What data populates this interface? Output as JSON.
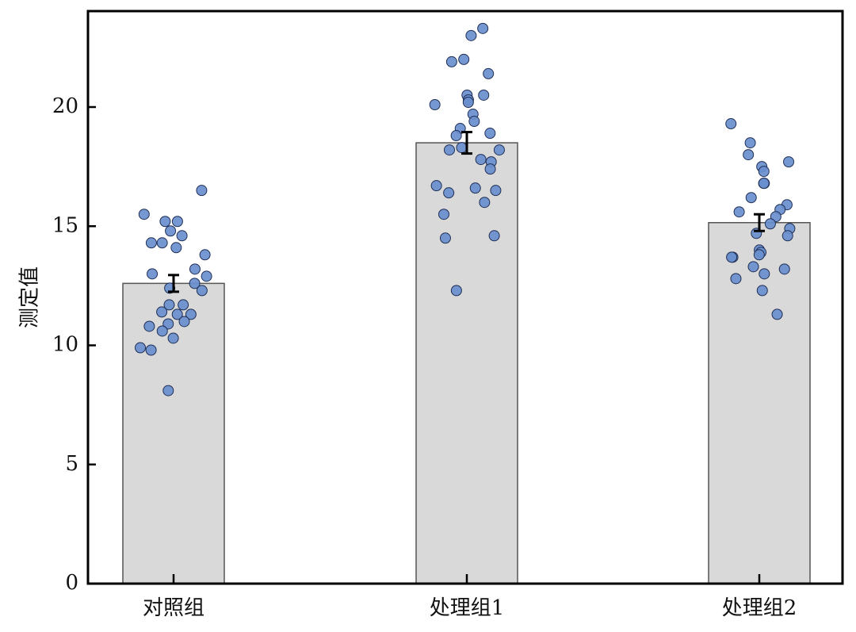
{
  "chart_data": {
    "type": "bar",
    "title": "",
    "xlabel": "",
    "ylabel": "测定值",
    "ylim": [
      0,
      24
    ],
    "yticks": [
      0,
      5,
      10,
      15,
      20
    ],
    "grid": false,
    "legend": "none",
    "categories": [
      "对照组",
      "处理组1",
      "处理组2"
    ],
    "values": [
      12.6,
      18.5,
      15.15
    ],
    "error": [
      0.35,
      0.45,
      0.35
    ],
    "points": [
      [
        16.5,
        15.5,
        15.2,
        15.2,
        14.8,
        14.6,
        14.3,
        14.3,
        14.1,
        13.8,
        13.2,
        13.0,
        12.9,
        12.6,
        12.4,
        12.3,
        11.7,
        11.7,
        11.4,
        11.3,
        11.3,
        11.0,
        10.9,
        10.8,
        10.6,
        10.3,
        9.9,
        9.8,
        8.1
      ],
      [
        23.3,
        23.0,
        22.0,
        21.9,
        21.4,
        20.5,
        20.5,
        20.3,
        20.2,
        20.1,
        19.7,
        19.4,
        19.1,
        18.9,
        18.8,
        18.3,
        18.2,
        18.2,
        17.8,
        17.7,
        17.4,
        16.7,
        16.6,
        16.5,
        16.4,
        16.0,
        15.5,
        14.6,
        14.5,
        12.3
      ],
      [
        19.3,
        18.5,
        18.0,
        17.7,
        17.5,
        17.3,
        16.8,
        16.8,
        16.8,
        16.2,
        15.9,
        15.7,
        15.6,
        15.4,
        15.1,
        14.9,
        14.7,
        14.6,
        14.0,
        13.9,
        13.8,
        13.7,
        13.7,
        13.3,
        13.2,
        13.0,
        12.8,
        12.3,
        11.3
      ]
    ],
    "colors": {
      "bar_fill": "#d9d9d9",
      "bar_stroke": "#555555",
      "point_fill": "#6a8fce",
      "point_stroke": "#1f2f55",
      "error": "#000000"
    }
  }
}
